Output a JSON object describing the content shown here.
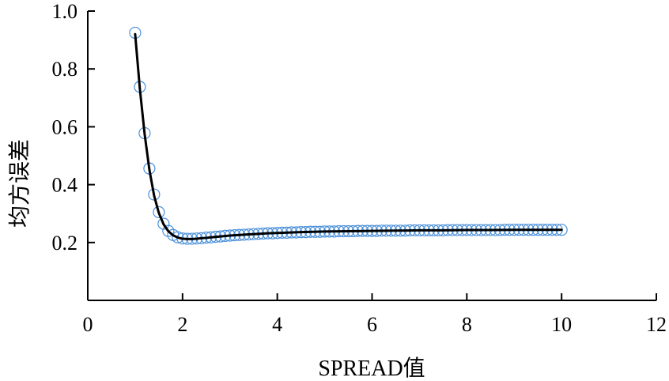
{
  "chart_data": {
    "type": "line",
    "xlabel": "SPREAD值",
    "ylabel": "均方误差",
    "xlim": [
      0,
      12
    ],
    "ylim": [
      0.0,
      1.0
    ],
    "x_ticks": [
      "0",
      "2",
      "4",
      "6",
      "8",
      "10",
      "12"
    ],
    "y_ticks": [
      "0.2",
      "0.4",
      "0.6",
      "0.8",
      "1.0"
    ],
    "grid": false,
    "series": [
      {
        "style": "markers",
        "marker": "open-circle",
        "color": "#4a90d9",
        "x": [
          1.0,
          1.1,
          1.2,
          1.3,
          1.4,
          1.5,
          1.6,
          1.7,
          1.8,
          1.9,
          2.0,
          2.1,
          2.2,
          2.3,
          2.4,
          2.5,
          2.6,
          2.7,
          2.8,
          2.9,
          3.0,
          3.1,
          3.2,
          3.3,
          3.4,
          3.5,
          3.6,
          3.7,
          3.8,
          3.9,
          4.0,
          4.1,
          4.2,
          4.3,
          4.4,
          4.5,
          4.6,
          4.7,
          4.8,
          4.9,
          5.0,
          5.1,
          5.2,
          5.3,
          5.4,
          5.5,
          5.6,
          5.7,
          5.8,
          5.9,
          6.0,
          6.1,
          6.2,
          6.3,
          6.4,
          6.5,
          6.6,
          6.7,
          6.8,
          6.9,
          7.0,
          7.1,
          7.2,
          7.3,
          7.4,
          7.5,
          7.6,
          7.7,
          7.8,
          7.9,
          8.0,
          8.1,
          8.2,
          8.3,
          8.4,
          8.5,
          8.6,
          8.7,
          8.8,
          8.9,
          9.0,
          9.1,
          9.2,
          9.3,
          9.4,
          9.5,
          9.6,
          9.7,
          9.8,
          9.9,
          10.0
        ],
        "y": [
          0.925,
          0.738,
          0.578,
          0.456,
          0.366,
          0.305,
          0.265,
          0.24,
          0.226,
          0.218,
          0.214,
          0.213,
          0.213,
          0.214,
          0.215,
          0.217,
          0.218,
          0.22,
          0.221,
          0.223,
          0.224,
          0.225,
          0.226,
          0.227,
          0.228,
          0.229,
          0.23,
          0.231,
          0.232,
          0.232,
          0.233,
          0.234,
          0.234,
          0.235,
          0.235,
          0.236,
          0.236,
          0.237,
          0.237,
          0.237,
          0.238,
          0.238,
          0.238,
          0.239,
          0.239,
          0.239,
          0.239,
          0.24,
          0.24,
          0.24,
          0.24,
          0.24,
          0.241,
          0.241,
          0.241,
          0.241,
          0.241,
          0.241,
          0.242,
          0.242,
          0.242,
          0.242,
          0.242,
          0.242,
          0.242,
          0.242,
          0.243,
          0.243,
          0.243,
          0.243,
          0.243,
          0.243,
          0.243,
          0.243,
          0.243,
          0.243,
          0.243,
          0.243,
          0.244,
          0.244,
          0.244,
          0.244,
          0.244,
          0.244,
          0.244,
          0.244,
          0.244,
          0.244,
          0.244,
          0.244,
          0.244
        ]
      },
      {
        "style": "line",
        "color": "#000000",
        "x": [
          1.0,
          1.1,
          1.2,
          1.3,
          1.4,
          1.5,
          1.6,
          1.7,
          1.8,
          1.9,
          2.0,
          2.1,
          2.2,
          2.3,
          2.4,
          2.5,
          2.6,
          2.8,
          3.0,
          3.2,
          3.4,
          3.6,
          3.8,
          4.0,
          4.5,
          5.0,
          5.5,
          6.0,
          6.5,
          7.0,
          7.5,
          8.0,
          8.5,
          9.0,
          9.5,
          10.0
        ],
        "y": [
          0.92,
          0.73,
          0.575,
          0.452,
          0.362,
          0.302,
          0.263,
          0.239,
          0.225,
          0.217,
          0.213,
          0.212,
          0.212,
          0.213,
          0.215,
          0.216,
          0.218,
          0.221,
          0.224,
          0.226,
          0.228,
          0.23,
          0.232,
          0.233,
          0.236,
          0.238,
          0.239,
          0.24,
          0.241,
          0.242,
          0.242,
          0.243,
          0.243,
          0.244,
          0.244,
          0.244
        ]
      }
    ]
  }
}
